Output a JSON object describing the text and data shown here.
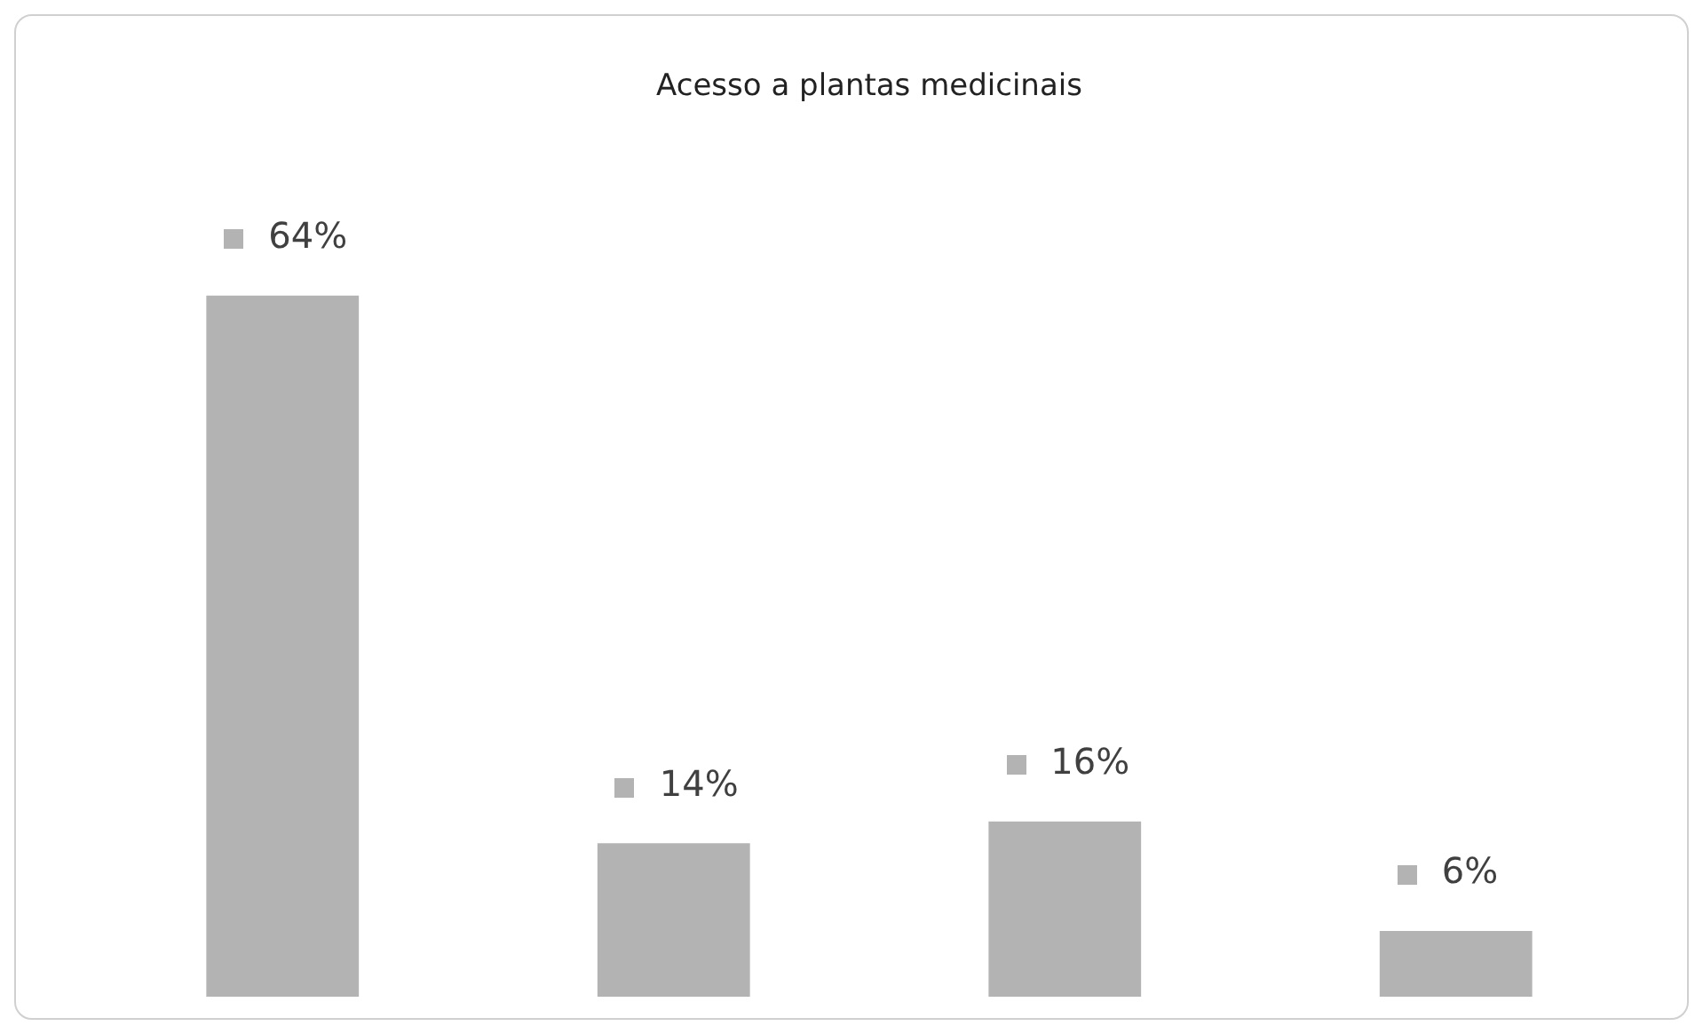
{
  "chart_data": {
    "type": "bar",
    "title": "Acesso a plantas medicinais",
    "categories": [
      null,
      null,
      null,
      null
    ],
    "values": [
      64,
      14,
      16,
      6
    ],
    "value_labels": [
      "64%",
      "14%",
      "16%",
      "6%"
    ],
    "color": "#b3b3b3",
    "grid": false,
    "legend": false,
    "tick_labels": false
  }
}
